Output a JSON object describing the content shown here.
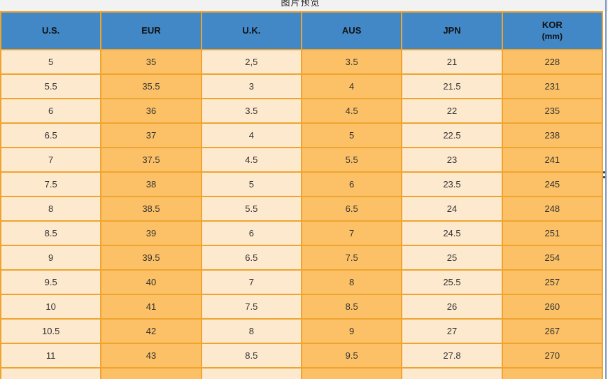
{
  "window": {
    "preview_title": "图片预览"
  },
  "size_chart": {
    "columns": [
      {
        "label": "U.S.",
        "tone": "light"
      },
      {
        "label": "EUR",
        "tone": "orange"
      },
      {
        "label": "U.K.",
        "tone": "light"
      },
      {
        "label": "AUS",
        "tone": "orange"
      },
      {
        "label": "JPN",
        "tone": "light"
      },
      {
        "label": "KOR",
        "sublabel": "(mm)",
        "tone": "orange"
      }
    ],
    "rows": [
      [
        "5",
        "35",
        "2,5",
        "3.5",
        "21",
        "228"
      ],
      [
        "5.5",
        "35.5",
        "3",
        "4",
        "21.5",
        "231"
      ],
      [
        "6",
        "36",
        "3.5",
        "4.5",
        "22",
        "235"
      ],
      [
        "6.5",
        "37",
        "4",
        "5",
        "22.5",
        "238"
      ],
      [
        "7",
        "37.5",
        "4.5",
        "5.5",
        "23",
        "241"
      ],
      [
        "7.5",
        "38",
        "5",
        "6",
        "23.5",
        "245"
      ],
      [
        "8",
        "38.5",
        "5.5",
        "6.5",
        "24",
        "248"
      ],
      [
        "8.5",
        "39",
        "6",
        "7",
        "24.5",
        "251"
      ],
      [
        "9",
        "39.5",
        "6.5",
        "7.5",
        "25",
        "254"
      ],
      [
        "9.5",
        "40",
        "7",
        "8",
        "25.5",
        "257"
      ],
      [
        "10",
        "41",
        "7.5",
        "8.5",
        "26",
        "260"
      ],
      [
        "10.5",
        "42",
        "8",
        "9",
        "27",
        "267"
      ],
      [
        "11",
        "43",
        "8.5",
        "9.5",
        "27.8",
        "270"
      ],
      [
        "",
        "",
        "",
        "",
        "",
        ""
      ]
    ],
    "colors": {
      "header_bg": "#4287C6",
      "row_light": "#FDE9CE",
      "row_orange": "#FCC166",
      "border": "#EFA42F",
      "topbar_bg": "#F2F2F2",
      "edge_line": "#7A96C2"
    }
  }
}
